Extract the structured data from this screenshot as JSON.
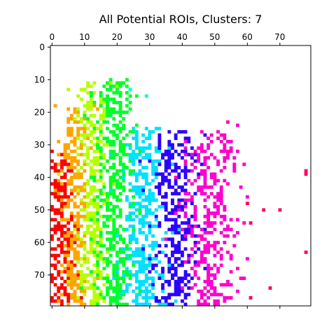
{
  "chart_data": {
    "type": "heatmap",
    "title": "All Potential ROIs, Clusters: 7",
    "xlabel": "",
    "ylabel": "",
    "grid_size": [
      80,
      80
    ],
    "x_axis_position": "top",
    "y_axis_inverted": true,
    "x_ticks": [
      0,
      10,
      20,
      30,
      40,
      50,
      60,
      70
    ],
    "y_ticks": [
      0,
      10,
      20,
      30,
      40,
      50,
      60,
      70
    ],
    "xlim": [
      -0.5,
      79.5
    ],
    "ylim": [
      79.5,
      -0.5
    ],
    "grid": false,
    "legend": "none",
    "colormap": "hsv",
    "num_clusters": 7,
    "background_color": "#ffffff",
    "clusters": [
      {
        "id": 0,
        "color": "#ff0000",
        "x_center": 3,
        "x_spread": 2.6,
        "y_range": [
          32,
          80
        ],
        "density": 0.72
      },
      {
        "id": 1,
        "color": "#ffa500",
        "x_center": 7,
        "x_spread": 2.4,
        "y_range": [
          18,
          80
        ],
        "density": 0.72
      },
      {
        "id": 2,
        "color": "#b6ff00",
        "x_center": 12.5,
        "x_spread": 2.6,
        "y_range": [
          11,
          80
        ],
        "density": 0.72
      },
      {
        "id": 3,
        "color": "#00ff2a",
        "x_center": 19.5,
        "x_spread": 3.2,
        "y_range": [
          10,
          80
        ],
        "density": 0.74
      },
      {
        "id": 4,
        "color": "#00e0ff",
        "x_center": 28,
        "x_spread": 3.4,
        "y_range": [
          25,
          80
        ],
        "density": 0.74
      },
      {
        "id": 5,
        "color": "#2a00ff",
        "x_center": 38,
        "x_spread": 3.4,
        "y_range": [
          26,
          80
        ],
        "density": 0.72
      },
      {
        "id": 6,
        "color": "#ff00cc",
        "x_center": 49,
        "x_spread": 4.2,
        "y_range": [
          26,
          80
        ],
        "density": 0.6
      }
    ],
    "outliers": [
      {
        "x": 78,
        "y": 38,
        "color": "#ff0066"
      },
      {
        "x": 78,
        "y": 39,
        "color": "#ff0066"
      },
      {
        "x": 78,
        "y": 63,
        "color": "#ff0066"
      },
      {
        "x": 70,
        "y": 50,
        "color": "#ff0066"
      },
      {
        "x": 65,
        "y": 50,
        "color": "#ff0066"
      },
      {
        "x": 60,
        "y": 48,
        "color": "#ff0066"
      },
      {
        "x": 61,
        "y": 54,
        "color": "#ff0066"
      },
      {
        "x": 57,
        "y": 24,
        "color": "#ff00cc"
      },
      {
        "x": 54,
        "y": 23,
        "color": "#ff00cc"
      },
      {
        "x": 53,
        "y": 32,
        "color": "#ff00cc"
      },
      {
        "x": 53,
        "y": 34,
        "color": "#ff00cc"
      },
      {
        "x": 59,
        "y": 36,
        "color": "#ff00cc"
      },
      {
        "x": 29,
        "y": 15,
        "color": "#00ffcc"
      },
      {
        "x": 24,
        "y": 13,
        "color": "#00ffcc"
      },
      {
        "x": 18,
        "y": 10,
        "color": "#00ff2a"
      },
      {
        "x": 17,
        "y": 13,
        "color": "#00ff2a"
      },
      {
        "x": 11,
        "y": 11,
        "color": "#b6ff00"
      },
      {
        "x": 12,
        "y": 12,
        "color": "#b6ff00"
      },
      {
        "x": 67,
        "y": 74,
        "color": "#ff0066"
      },
      {
        "x": 61,
        "y": 77,
        "color": "#ff0066"
      }
    ]
  }
}
